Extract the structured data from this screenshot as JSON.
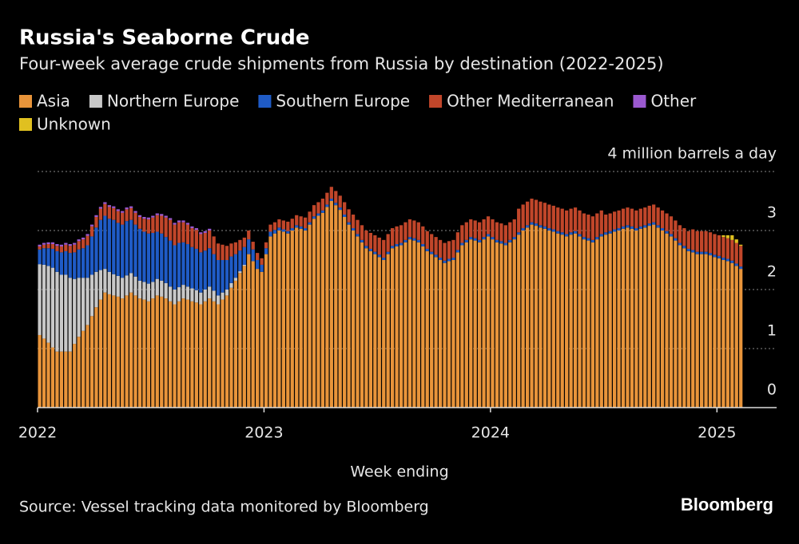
{
  "chart_data": {
    "type": "stacked_bar",
    "title": "Russia's Seaborne Crude",
    "subtitle": "Four-week average crude shipments from Russia by destination (2022-2025)",
    "x_label": "Week ending",
    "source": "Source: Vessel tracking data monitored by Bloomberg",
    "brand": "Bloomberg",
    "ylim": [
      0,
      4
    ],
    "yticks": [
      0,
      1,
      2,
      3,
      {
        "value": 4,
        "label": "4 million barrels a day"
      }
    ],
    "grid": true,
    "categories": [
      "2022",
      null,
      null,
      null,
      null,
      null,
      null,
      null,
      null,
      null,
      null,
      null,
      null,
      null,
      null,
      null,
      null,
      null,
      null,
      null,
      null,
      null,
      null,
      null,
      null,
      null,
      null,
      null,
      null,
      null,
      null,
      null,
      null,
      null,
      null,
      null,
      null,
      null,
      null,
      null,
      null,
      null,
      null,
      null,
      null,
      null,
      null,
      null,
      null,
      null,
      null,
      null,
      "2023",
      null,
      null,
      null,
      null,
      null,
      null,
      null,
      null,
      null,
      null,
      null,
      null,
      null,
      null,
      null,
      null,
      null,
      null,
      null,
      null,
      null,
      null,
      null,
      null,
      null,
      null,
      null,
      null,
      null,
      null,
      null,
      null,
      null,
      null,
      null,
      null,
      null,
      null,
      null,
      null,
      null,
      null,
      null,
      null,
      null,
      null,
      null,
      null,
      null,
      null,
      null,
      "2024",
      null,
      null,
      null,
      null,
      null,
      null,
      null,
      null,
      null,
      null,
      null,
      null,
      null,
      null,
      null,
      null,
      null,
      null,
      null,
      null,
      null,
      null,
      null,
      null,
      null,
      null,
      null,
      null,
      null,
      null,
      null,
      null,
      null,
      null,
      null,
      null,
      null,
      null,
      null,
      null,
      null,
      null,
      null,
      null,
      null,
      null,
      null,
      null,
      null,
      null,
      null,
      "2025",
      null,
      null,
      null,
      null,
      null
    ],
    "series": [
      {
        "name": "Asia",
        "color": "#e8943a",
        "values": [
          1.23,
          1.17,
          1.1,
          1.02,
          0.95,
          0.95,
          0.95,
          0.95,
          1.08,
          1.2,
          1.3,
          1.4,
          1.55,
          1.7,
          1.83,
          1.95,
          1.92,
          1.9,
          1.88,
          1.85,
          1.9,
          1.95,
          1.9,
          1.85,
          1.83,
          1.8,
          1.85,
          1.9,
          1.88,
          1.85,
          1.8,
          1.75,
          1.8,
          1.85,
          1.83,
          1.8,
          1.78,
          1.75,
          1.8,
          1.85,
          1.8,
          1.75,
          1.83,
          1.9,
          2.03,
          2.15,
          2.28,
          2.4,
          2.6,
          2.48,
          2.35,
          2.3,
          2.6,
          2.9,
          2.95,
          3.0,
          2.98,
          2.95,
          3.0,
          3.05,
          3.03,
          3.0,
          3.1,
          3.2,
          3.25,
          3.3,
          3.4,
          3.5,
          3.43,
          3.35,
          3.23,
          3.1,
          3.0,
          2.9,
          2.8,
          2.7,
          2.65,
          2.6,
          2.55,
          2.5,
          2.6,
          2.7,
          2.73,
          2.75,
          2.8,
          2.85,
          2.83,
          2.8,
          2.73,
          2.65,
          2.6,
          2.55,
          2.5,
          2.45,
          2.48,
          2.5,
          2.63,
          2.75,
          2.8,
          2.85,
          2.83,
          2.8,
          2.85,
          2.9,
          2.85,
          2.8,
          2.78,
          2.75,
          2.8,
          2.85,
          2.93,
          3.0,
          3.05,
          3.1,
          3.08,
          3.05,
          3.03,
          3.0,
          2.98,
          2.95,
          2.93,
          2.9,
          2.93,
          2.95,
          2.9,
          2.85,
          2.83,
          2.8,
          2.85,
          2.9,
          2.93,
          2.95,
          2.98,
          3.0,
          3.03,
          3.05,
          3.03,
          3.0,
          3.03,
          3.05,
          3.08,
          3.1,
          3.05,
          3.0,
          2.95,
          2.9,
          2.83,
          2.75,
          2.7,
          2.65,
          2.63,
          2.6,
          2.6,
          2.6,
          2.58,
          2.55,
          2.53,
          2.5,
          2.48,
          2.45,
          2.4,
          2.35
        ]
      },
      {
        "name": "Northern Europe",
        "color": "#c8c8c8",
        "values": [
          1.2,
          1.25,
          1.3,
          1.35,
          1.35,
          1.3,
          1.3,
          1.25,
          1.1,
          1.0,
          0.9,
          0.8,
          0.7,
          0.6,
          0.5,
          0.4,
          0.38,
          0.36,
          0.35,
          0.35,
          0.34,
          0.33,
          0.32,
          0.3,
          0.3,
          0.3,
          0.28,
          0.28,
          0.27,
          0.26,
          0.25,
          0.25,
          0.24,
          0.23,
          0.22,
          0.22,
          0.21,
          0.2,
          0.2,
          0.2,
          0.18,
          0.15,
          0.12,
          0.1,
          0.08,
          0.05,
          0.03,
          0.02,
          0,
          0,
          0,
          0,
          0,
          0,
          0,
          0,
          0,
          0,
          0,
          0,
          0,
          0,
          0,
          0,
          0,
          0,
          0,
          0,
          0,
          0,
          0,
          0,
          0,
          0,
          0,
          0,
          0,
          0,
          0,
          0,
          0,
          0,
          0,
          0,
          0,
          0,
          0,
          0,
          0,
          0,
          0,
          0,
          0,
          0,
          0,
          0,
          0,
          0,
          0,
          0,
          0,
          0,
          0,
          0,
          0,
          0,
          0,
          0,
          0,
          0,
          0,
          0,
          0,
          0,
          0,
          0,
          0,
          0,
          0,
          0,
          0,
          0,
          0,
          0,
          0,
          0,
          0,
          0,
          0,
          0,
          0,
          0,
          0,
          0,
          0,
          0,
          0,
          0,
          0,
          0,
          0,
          0,
          0,
          0,
          0,
          0,
          0,
          0,
          0,
          0,
          0,
          0,
          0,
          0,
          0,
          0,
          0,
          0,
          0,
          0,
          0,
          0
        ]
      },
      {
        "name": "Southern Europe",
        "color": "#1f5bc6",
        "values": [
          0.25,
          0.28,
          0.3,
          0.32,
          0.35,
          0.38,
          0.4,
          0.42,
          0.45,
          0.48,
          0.5,
          0.55,
          0.65,
          0.75,
          0.85,
          0.9,
          0.9,
          0.92,
          0.9,
          0.9,
          0.92,
          0.9,
          0.88,
          0.88,
          0.85,
          0.85,
          0.83,
          0.8,
          0.8,
          0.78,
          0.78,
          0.75,
          0.75,
          0.72,
          0.72,
          0.7,
          0.7,
          0.68,
          0.66,
          0.65,
          0.62,
          0.6,
          0.55,
          0.5,
          0.45,
          0.4,
          0.35,
          0.3,
          0.25,
          0.2,
          0.15,
          0.12,
          0.1,
          0.08,
          0.06,
          0.05,
          0.04,
          0.04,
          0.04,
          0.04,
          0.04,
          0.04,
          0.04,
          0.04,
          0.04,
          0.04,
          0.04,
          0.04,
          0.04,
          0.04,
          0.04,
          0.04,
          0.04,
          0.04,
          0.04,
          0.04,
          0.04,
          0.04,
          0.04,
          0.04,
          0.04,
          0.04,
          0.04,
          0.04,
          0.04,
          0.04,
          0.04,
          0.04,
          0.04,
          0.04,
          0.04,
          0.04,
          0.04,
          0.04,
          0.04,
          0.04,
          0.04,
          0.04,
          0.04,
          0.04,
          0.04,
          0.04,
          0.04,
          0.04,
          0.04,
          0.04,
          0.04,
          0.04,
          0.04,
          0.04,
          0.04,
          0.04,
          0.04,
          0.04,
          0.04,
          0.04,
          0.04,
          0.04,
          0.04,
          0.04,
          0.04,
          0.04,
          0.04,
          0.04,
          0.04,
          0.04,
          0.04,
          0.04,
          0.04,
          0.04,
          0.04,
          0.04,
          0.04,
          0.04,
          0.04,
          0.04,
          0.04,
          0.04,
          0.04,
          0.04,
          0.04,
          0.04,
          0.04,
          0.04,
          0.04,
          0.04,
          0.04,
          0.04,
          0.04,
          0.04,
          0.04,
          0.04,
          0.04,
          0.04,
          0.04,
          0.04,
          0.04,
          0.04,
          0.04,
          0.04,
          0.04,
          0.04
        ]
      },
      {
        "name": "Other Mediterranean",
        "color": "#c1462a",
        "values": [
          0.05,
          0.06,
          0.07,
          0.08,
          0.09,
          0.1,
          0.11,
          0.12,
          0.13,
          0.14,
          0.15,
          0.16,
          0.17,
          0.18,
          0.19,
          0.2,
          0.2,
          0.2,
          0.2,
          0.2,
          0.2,
          0.2,
          0.2,
          0.2,
          0.22,
          0.24,
          0.26,
          0.28,
          0.3,
          0.33,
          0.35,
          0.35,
          0.35,
          0.34,
          0.33,
          0.32,
          0.32,
          0.31,
          0.3,
          0.3,
          0.3,
          0.28,
          0.26,
          0.24,
          0.22,
          0.2,
          0.18,
          0.16,
          0.15,
          0.13,
          0.12,
          0.11,
          0.1,
          0.12,
          0.13,
          0.14,
          0.15,
          0.16,
          0.16,
          0.17,
          0.17,
          0.18,
          0.18,
          0.19,
          0.19,
          0.2,
          0.2,
          0.2,
          0.2,
          0.2,
          0.21,
          0.22,
          0.23,
          0.24,
          0.25,
          0.26,
          0.27,
          0.28,
          0.29,
          0.3,
          0.3,
          0.3,
          0.3,
          0.3,
          0.3,
          0.3,
          0.3,
          0.3,
          0.3,
          0.3,
          0.3,
          0.3,
          0.3,
          0.3,
          0.3,
          0.3,
          0.3,
          0.3,
          0.3,
          0.3,
          0.3,
          0.3,
          0.3,
          0.3,
          0.3,
          0.3,
          0.3,
          0.3,
          0.3,
          0.3,
          0.4,
          0.4,
          0.4,
          0.4,
          0.4,
          0.4,
          0.4,
          0.4,
          0.4,
          0.4,
          0.4,
          0.4,
          0.4,
          0.4,
          0.4,
          0.4,
          0.4,
          0.4,
          0.4,
          0.4,
          0.3,
          0.3,
          0.3,
          0.3,
          0.3,
          0.3,
          0.3,
          0.3,
          0.3,
          0.3,
          0.3,
          0.3,
          0.3,
          0.3,
          0.3,
          0.3,
          0.3,
          0.3,
          0.3,
          0.3,
          0.35,
          0.35,
          0.35,
          0.35,
          0.35,
          0.35,
          0.35,
          0.35,
          0.35,
          0.35,
          0.35,
          0.35
        ]
      },
      {
        "name": "Other",
        "color": "#9b59d0",
        "values": [
          0.03,
          0.03,
          0.03,
          0.03,
          0.03,
          0.03,
          0.03,
          0.03,
          0.03,
          0.03,
          0.03,
          0.03,
          0.03,
          0.03,
          0.03,
          0.03,
          0.03,
          0.03,
          0.03,
          0.03,
          0.03,
          0.03,
          0.03,
          0.03,
          0.03,
          0.03,
          0.03,
          0.03,
          0.03,
          0.03,
          0.03,
          0.03,
          0.03,
          0.03,
          0.03,
          0.03,
          0.03,
          0.03,
          0.03,
          0.03,
          0,
          0,
          0,
          0,
          0,
          0,
          0,
          0,
          0,
          0,
          0,
          0,
          0,
          0,
          0,
          0,
          0,
          0,
          0,
          0,
          0,
          0,
          0,
          0,
          0,
          0,
          0,
          0,
          0,
          0,
          0,
          0,
          0,
          0,
          0,
          0,
          0,
          0,
          0,
          0,
          0,
          0,
          0,
          0,
          0,
          0,
          0,
          0,
          0,
          0,
          0,
          0,
          0,
          0,
          0,
          0,
          0,
          0,
          0,
          0,
          0,
          0,
          0,
          0,
          0,
          0,
          0,
          0,
          0,
          0,
          0,
          0,
          0,
          0,
          0,
          0,
          0,
          0,
          0,
          0,
          0,
          0,
          0,
          0,
          0,
          0,
          0,
          0,
          0,
          0,
          0,
          0,
          0,
          0,
          0,
          0,
          0,
          0,
          0,
          0,
          0,
          0,
          0,
          0,
          0,
          0,
          0,
          0,
          0,
          0,
          0,
          0,
          0,
          0,
          0,
          0,
          0,
          0,
          0,
          0,
          0,
          0
        ]
      },
      {
        "name": "Unknown",
        "color": "#e0c020",
        "values": [
          0,
          0,
          0,
          0,
          0,
          0,
          0,
          0,
          0,
          0,
          0,
          0,
          0,
          0,
          0,
          0,
          0,
          0,
          0,
          0,
          0,
          0,
          0,
          0,
          0,
          0,
          0,
          0,
          0,
          0,
          0,
          0,
          0,
          0,
          0,
          0,
          0,
          0,
          0,
          0,
          0,
          0,
          0,
          0,
          0,
          0,
          0,
          0,
          0,
          0,
          0,
          0,
          0,
          0,
          0,
          0,
          0,
          0,
          0,
          0,
          0,
          0,
          0,
          0,
          0,
          0,
          0,
          0,
          0,
          0,
          0,
          0,
          0,
          0,
          0,
          0,
          0,
          0,
          0,
          0,
          0,
          0,
          0,
          0,
          0,
          0,
          0,
          0,
          0,
          0,
          0,
          0,
          0,
          0,
          0,
          0,
          0,
          0,
          0,
          0,
          0,
          0,
          0,
          0,
          0,
          0,
          0,
          0,
          0,
          0,
          0,
          0,
          0,
          0,
          0,
          0,
          0,
          0,
          0,
          0,
          0,
          0,
          0,
          0,
          0,
          0,
          0,
          0,
          0,
          0,
          0,
          0,
          0,
          0,
          0,
          0,
          0,
          0,
          0,
          0,
          0,
          0,
          0,
          0,
          0,
          0,
          0,
          0,
          0,
          0,
          0,
          0,
          0,
          0,
          0,
          0,
          0,
          0.03,
          0.05,
          0.08,
          0.06,
          0.02
        ]
      }
    ]
  }
}
